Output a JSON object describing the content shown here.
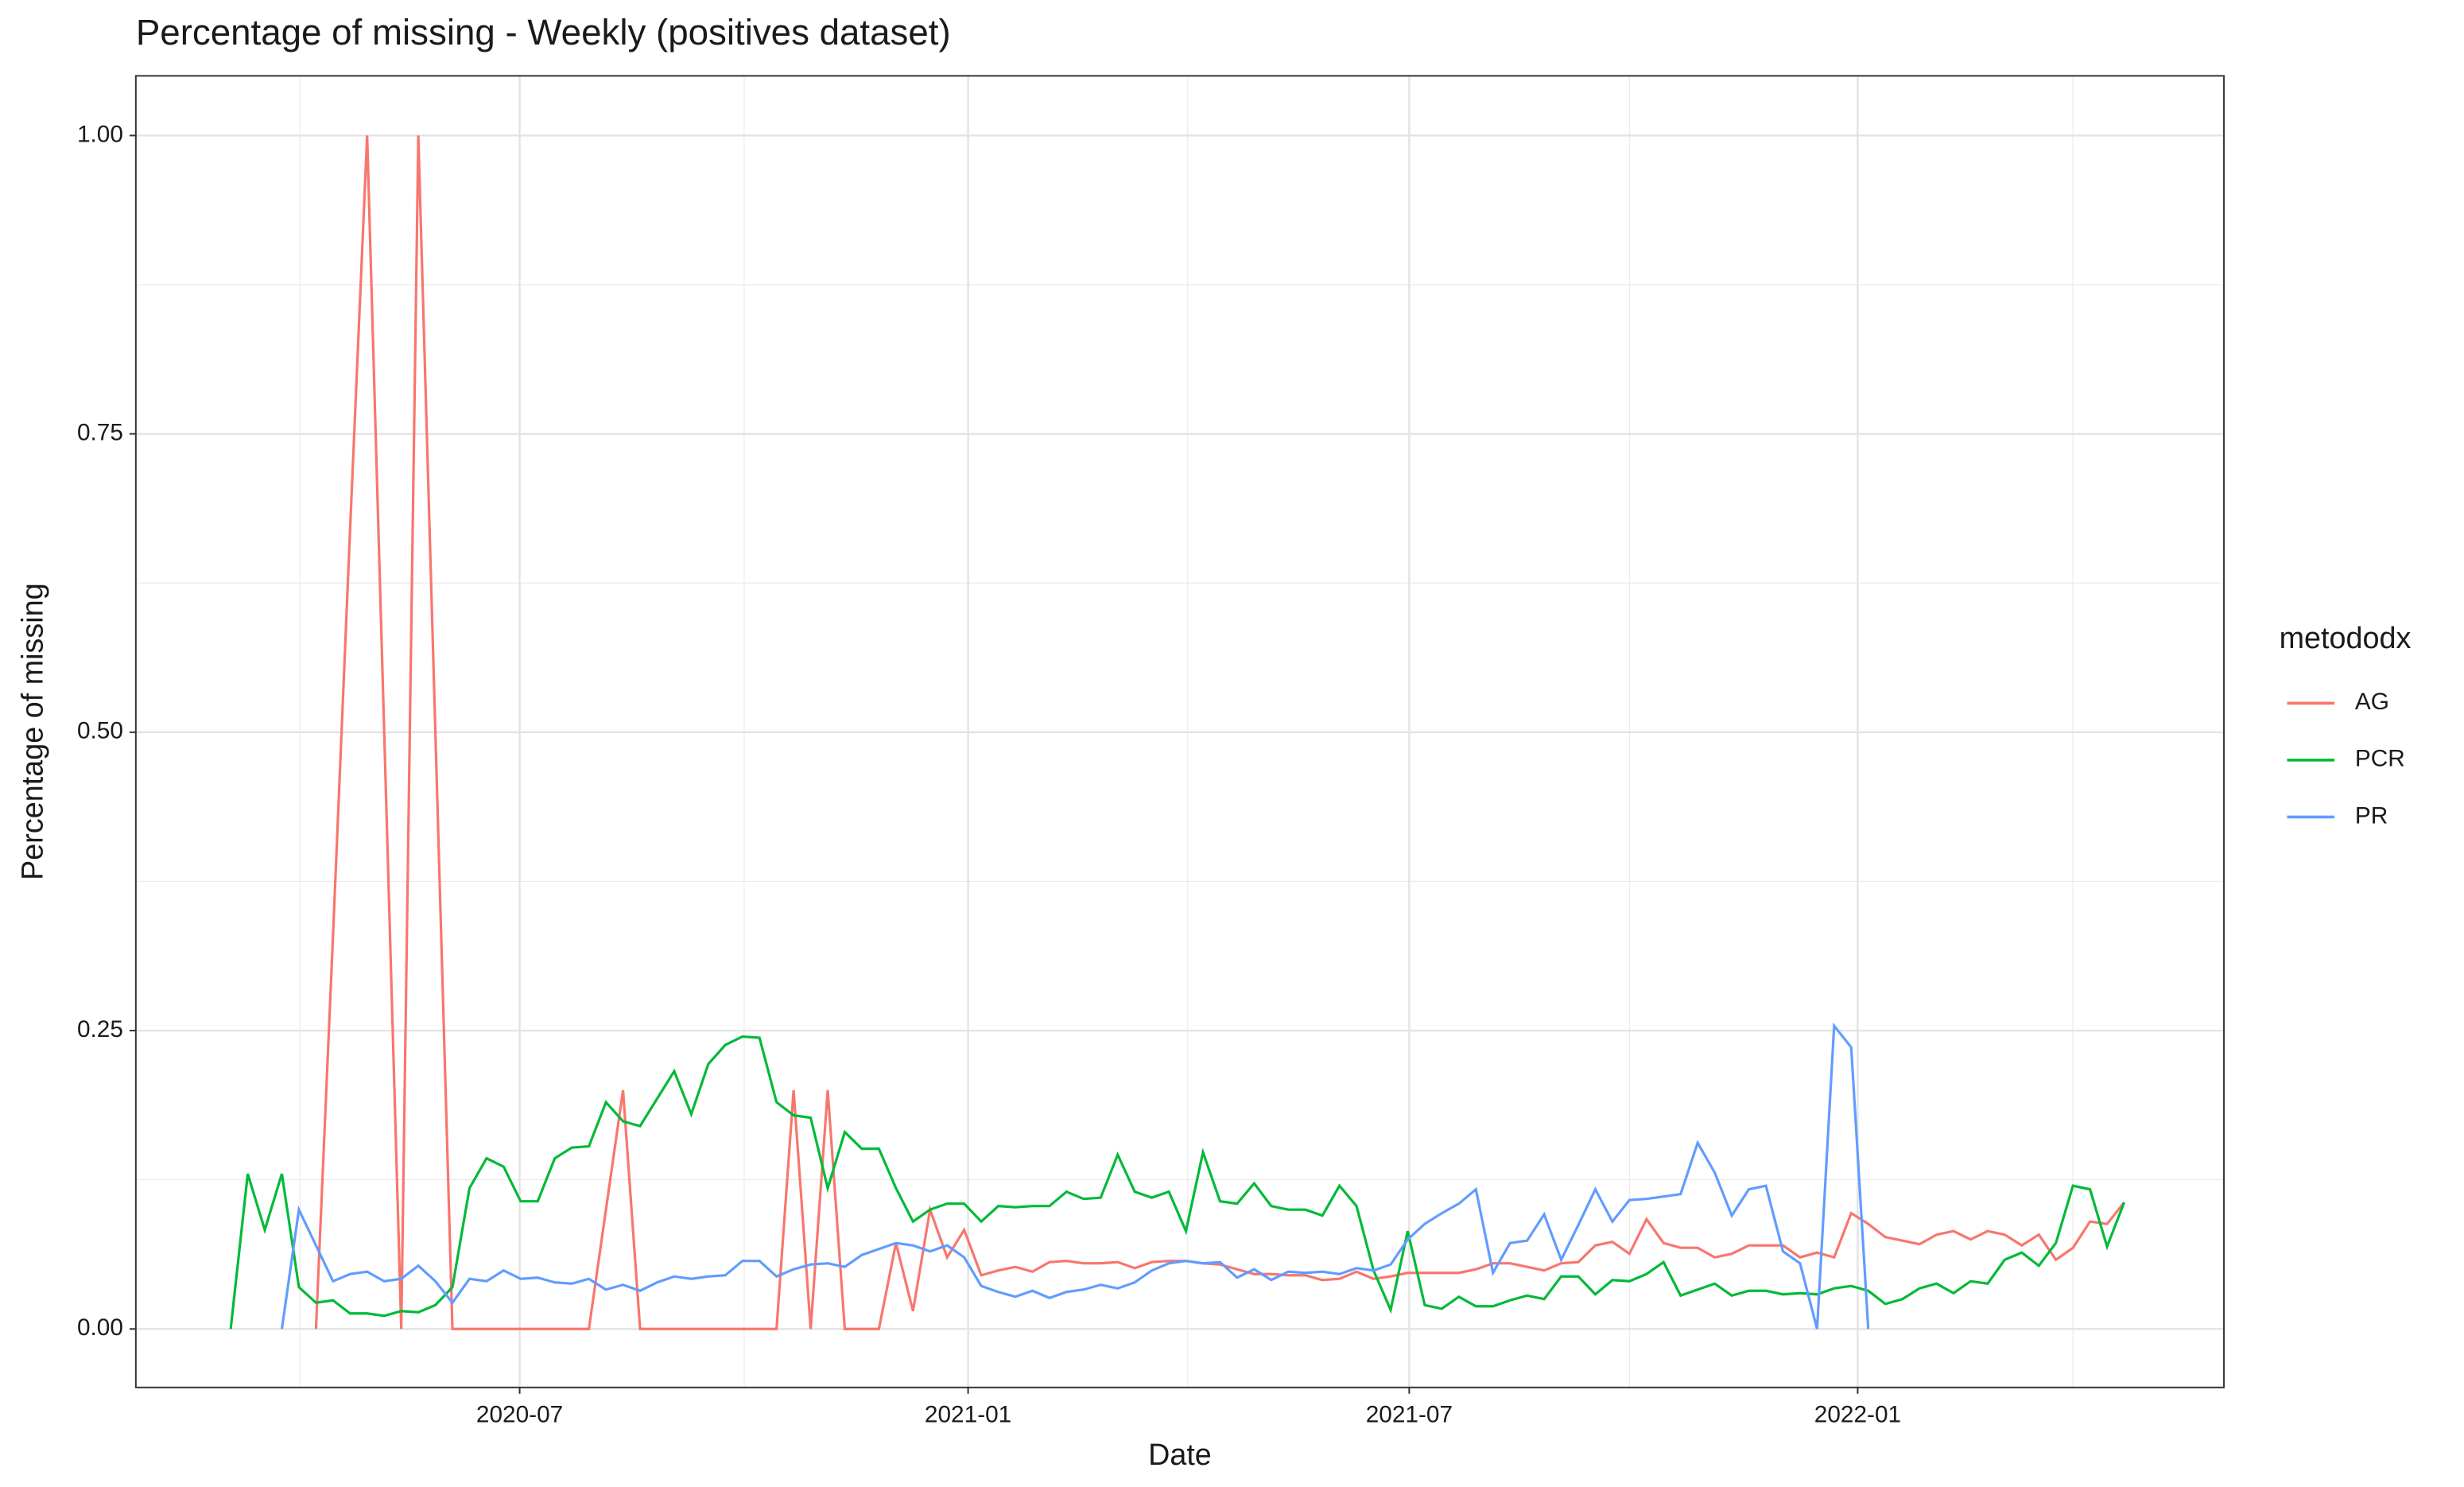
{
  "chart_data": {
    "type": "line",
    "title": "Percentage of missing - Weekly (positives dataset)",
    "x_label": "Date",
    "y_label": "Percentage of missing",
    "legend_title": "metododx",
    "x": [
      0,
      1,
      2,
      3,
      4,
      5,
      6,
      7,
      8,
      9,
      10,
      11,
      12,
      13,
      14,
      15,
      16,
      17,
      18,
      19,
      20,
      21,
      22,
      23,
      24,
      25,
      26,
      27,
      28,
      29,
      30,
      31,
      32,
      33,
      34,
      35,
      36,
      37,
      38,
      39,
      40,
      41,
      42,
      43,
      44,
      45,
      46,
      47,
      48,
      49,
      50,
      51,
      52,
      53,
      54,
      55,
      56,
      57,
      58,
      59,
      60,
      61,
      62,
      63,
      64,
      65,
      66,
      67,
      68,
      69,
      70,
      71,
      72,
      73,
      74,
      75,
      76,
      77,
      78,
      79,
      80,
      81,
      82,
      83,
      84,
      85,
      86,
      87,
      88,
      89,
      90,
      91,
      92,
      93,
      94,
      95,
      96,
      97,
      98,
      99,
      100,
      101,
      102,
      103,
      104,
      105,
      106,
      107,
      108,
      109,
      110,
      111
    ],
    "series": [
      {
        "name": "AG",
        "color": "#F8766D",
        "values": [
          null,
          null,
          null,
          null,
          null,
          0,
          0.33,
          0.67,
          1.0,
          0.5,
          0,
          1.0,
          0.5,
          0,
          0,
          0,
          0,
          0,
          0,
          0,
          0,
          0,
          0.1,
          0.2,
          0,
          0,
          0,
          0,
          0,
          0,
          0,
          0,
          0,
          0.2,
          0,
          0.2,
          0,
          0,
          0,
          0.072,
          0.015,
          0.1,
          0.06,
          0.083,
          0.045,
          0.049,
          0.052,
          0.048,
          0.056,
          0.057,
          0.055,
          0.055,
          0.056,
          0.051,
          0.056,
          0.057,
          0.057,
          0.055,
          0.054,
          0.05,
          0.046,
          0.046,
          0.045,
          0.045,
          0.041,
          0.042,
          0.048,
          0.042,
          0.044,
          0.047,
          0.047,
          0.047,
          0.047,
          0.05,
          0.055,
          0.055,
          0.052,
          0.049,
          0.055,
          0.056,
          0.07,
          0.073,
          0.063,
          0.092,
          0.072,
          0.068,
          0.068,
          0.06,
          0.063,
          0.07,
          0.07,
          0.07,
          0.06,
          0.064,
          0.06,
          0.097,
          0.088,
          0.077,
          0.074,
          0.071,
          0.079,
          0.082,
          0.075,
          0.082,
          0.079,
          0.07,
          0.079,
          0.058,
          0.068,
          0.09,
          0.088,
          0.106
        ]
      },
      {
        "name": "PCR",
        "color": "#00BA38",
        "values": [
          0,
          0.13,
          0.083,
          0.13,
          0.035,
          0.022,
          0.024,
          0.013,
          0.013,
          0.011,
          0.015,
          0.014,
          0.02,
          0.035,
          0.118,
          0.143,
          0.136,
          0.107,
          0.107,
          0.143,
          0.152,
          0.153,
          0.19,
          0.174,
          0.17,
          0.193,
          0.216,
          0.18,
          0.222,
          0.238,
          0.245,
          0.244,
          0.19,
          0.179,
          0.177,
          0.118,
          0.165,
          0.151,
          0.151,
          0.118,
          0.09,
          0.1,
          0.105,
          0.105,
          0.09,
          0.103,
          0.102,
          0.103,
          0.103,
          0.115,
          0.109,
          0.11,
          0.146,
          0.115,
          0.11,
          0.115,
          0.082,
          0.148,
          0.107,
          0.105,
          0.122,
          0.103,
          0.1,
          0.1,
          0.095,
          0.12,
          0.103,
          0.049,
          0.016,
          0.082,
          0.02,
          0.017,
          0.027,
          0.019,
          0.019,
          0.024,
          0.028,
          0.025,
          0.044,
          0.044,
          0.029,
          0.041,
          0.04,
          0.046,
          0.056,
          0.028,
          0.033,
          0.038,
          0.028,
          0.032,
          0.032,
          0.029,
          0.03,
          0.029,
          0.034,
          0.036,
          0.032,
          0.021,
          0.025,
          0.034,
          0.038,
          0.03,
          0.04,
          0.038,
          0.058,
          0.064,
          0.053,
          0.072,
          0.12,
          0.117,
          0.069,
          0.106
        ]
      },
      {
        "name": "PR",
        "color": "#619CFF",
        "values": [
          null,
          null,
          null,
          0,
          0.1,
          0.07,
          0.04,
          0.046,
          0.048,
          0.04,
          0.042,
          0.053,
          0.04,
          0.022,
          0.042,
          0.04,
          0.049,
          0.042,
          0.043,
          0.039,
          0.038,
          0.042,
          0.033,
          0.037,
          0.032,
          0.039,
          0.044,
          0.042,
          0.044,
          0.045,
          0.057,
          0.057,
          0.044,
          0.05,
          0.054,
          0.055,
          0.052,
          0.062,
          0.067,
          0.072,
          0.07,
          0.065,
          0.07,
          0.06,
          0.036,
          0.031,
          0.027,
          0.032,
          0.026,
          0.031,
          0.033,
          0.037,
          0.034,
          0.039,
          0.049,
          0.055,
          0.057,
          0.055,
          0.056,
          0.043,
          0.05,
          0.041,
          0.048,
          0.047,
          0.048,
          0.046,
          0.051,
          0.049,
          0.054,
          0.075,
          0.088,
          0.097,
          0.105,
          0.117,
          0.047,
          0.072,
          0.074,
          0.096,
          0.058,
          0.087,
          0.117,
          0.09,
          0.108,
          0.109,
          0.111,
          0.113,
          0.156,
          0.131,
          0.095,
          0.117,
          0.12,
          0.065,
          0.055,
          0,
          0.254,
          0.236,
          0,
          null,
          null,
          null,
          null,
          null,
          null,
          null,
          null,
          null,
          null,
          null,
          null,
          null,
          null,
          null
        ]
      }
    ],
    "xlim": [
      -5.56,
      116.85
    ],
    "xticks": [
      {
        "value": 16.94,
        "label": "2020-07"
      },
      {
        "value": 43.23,
        "label": "2021-01"
      },
      {
        "value": 69.09,
        "label": "2021-07"
      },
      {
        "value": 95.38,
        "label": "2022-01"
      }
    ],
    "xminor": [
      4.07,
      30.1,
      56.1,
      82.0,
      108.0
    ],
    "ylim": [
      -0.049,
      1.05
    ],
    "yticks": [
      {
        "value": 0,
        "label": "0.00"
      },
      {
        "value": 0.25,
        "label": "0.25"
      },
      {
        "value": 0.5,
        "label": "0.50"
      },
      {
        "value": 0.75,
        "label": "0.75"
      },
      {
        "value": 1,
        "label": "1.00"
      }
    ],
    "yminor": [
      0.125,
      0.375,
      0.625,
      0.875
    ],
    "grid": true,
    "legend": "right"
  }
}
